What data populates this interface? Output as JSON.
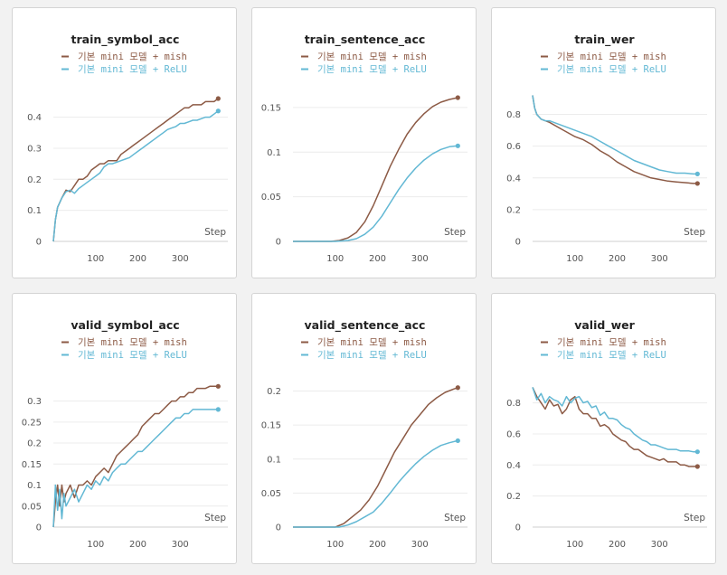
{
  "legend": {
    "series_a": "기본 mini 모델 + mish",
    "series_b": "기본 mini 모델 + ReLU"
  },
  "colors": {
    "mish": "#8c5a45",
    "relu": "#62b8d4",
    "grid": "#ececec"
  },
  "x_axis_label": "Step",
  "chart_data": [
    {
      "type": "line",
      "title": "train_symbol_acc",
      "xlabel": "Step",
      "xlim": [
        0,
        400
      ],
      "ylim": [
        0,
        0.46
      ],
      "xticks": [
        "100",
        "200",
        "300"
      ],
      "xtick_values": [
        100,
        200,
        300
      ],
      "yticks": [
        "0",
        "0.1",
        "0.2",
        "0.3",
        "0.4"
      ],
      "ytick_values": [
        0,
        0.1,
        0.2,
        0.3,
        0.4
      ],
      "series": [
        {
          "name": "기본 mini 모델 + mish",
          "x": [
            0,
            5,
            10,
            20,
            30,
            40,
            50,
            60,
            70,
            80,
            90,
            100,
            110,
            120,
            130,
            140,
            150,
            160,
            170,
            180,
            190,
            200,
            210,
            220,
            230,
            240,
            250,
            260,
            270,
            280,
            290,
            300,
            310,
            320,
            330,
            340,
            350,
            360,
            370,
            380,
            390
          ],
          "y": [
            0,
            0.07,
            0.11,
            0.14,
            0.165,
            0.16,
            0.18,
            0.2,
            0.2,
            0.21,
            0.23,
            0.24,
            0.25,
            0.25,
            0.26,
            0.26,
            0.26,
            0.28,
            0.29,
            0.3,
            0.31,
            0.32,
            0.33,
            0.34,
            0.35,
            0.36,
            0.37,
            0.38,
            0.39,
            0.4,
            0.41,
            0.42,
            0.43,
            0.43,
            0.44,
            0.44,
            0.44,
            0.45,
            0.45,
            0.45,
            0.46
          ]
        },
        {
          "name": "기본 mini 모델 + ReLU",
          "x": [
            0,
            5,
            10,
            20,
            30,
            40,
            50,
            60,
            70,
            80,
            90,
            100,
            110,
            120,
            130,
            140,
            150,
            160,
            170,
            180,
            190,
            200,
            210,
            220,
            230,
            240,
            250,
            260,
            270,
            280,
            290,
            300,
            310,
            320,
            330,
            340,
            350,
            360,
            370,
            380,
            390
          ],
          "y": [
            0,
            0.07,
            0.11,
            0.14,
            0.16,
            0.165,
            0.155,
            0.17,
            0.18,
            0.19,
            0.2,
            0.21,
            0.22,
            0.24,
            0.25,
            0.25,
            0.255,
            0.26,
            0.265,
            0.27,
            0.28,
            0.29,
            0.3,
            0.31,
            0.32,
            0.33,
            0.34,
            0.35,
            0.36,
            0.365,
            0.37,
            0.38,
            0.38,
            0.385,
            0.39,
            0.39,
            0.395,
            0.4,
            0.4,
            0.41,
            0.42
          ]
        }
      ]
    },
    {
      "type": "line",
      "title": "train_sentence_acc",
      "xlabel": "Step",
      "xlim": [
        0,
        400
      ],
      "ylim": [
        0,
        0.16
      ],
      "xticks": [
        "100",
        "200",
        "300"
      ],
      "xtick_values": [
        100,
        200,
        300
      ],
      "yticks": [
        "0",
        "0.05",
        "0.1",
        "0.15"
      ],
      "ytick_values": [
        0,
        0.05,
        0.1,
        0.15
      ],
      "series": [
        {
          "name": "기본 mini 모델 + mish",
          "x": [
            0,
            50,
            90,
            110,
            130,
            150,
            170,
            190,
            210,
            230,
            250,
            270,
            290,
            310,
            330,
            350,
            370,
            390
          ],
          "y": [
            0,
            0,
            0,
            0.001,
            0.004,
            0.01,
            0.022,
            0.04,
            0.062,
            0.084,
            0.103,
            0.12,
            0.133,
            0.143,
            0.151,
            0.156,
            0.159,
            0.161
          ]
        },
        {
          "name": "기본 mini 모델 + ReLU",
          "x": [
            0,
            50,
            100,
            130,
            150,
            170,
            190,
            210,
            230,
            250,
            270,
            290,
            310,
            330,
            350,
            370,
            390
          ],
          "y": [
            0,
            0,
            0,
            0.001,
            0.003,
            0.008,
            0.016,
            0.028,
            0.043,
            0.058,
            0.071,
            0.082,
            0.091,
            0.098,
            0.103,
            0.106,
            0.107
          ]
        }
      ]
    },
    {
      "type": "line",
      "title": "train_wer",
      "xlabel": "Step",
      "xlim": [
        0,
        400
      ],
      "ylim": [
        0,
        0.9
      ],
      "xticks": [
        "100",
        "200",
        "300"
      ],
      "xtick_values": [
        100,
        200,
        300
      ],
      "yticks": [
        "0",
        "0.2",
        "0.4",
        "0.6",
        "0.8"
      ],
      "ytick_values": [
        0,
        0.2,
        0.4,
        0.6,
        0.8
      ],
      "series": [
        {
          "name": "기본 mini 모델 + mish",
          "x": [
            0,
            5,
            10,
            20,
            30,
            40,
            60,
            80,
            100,
            120,
            140,
            160,
            180,
            200,
            220,
            240,
            260,
            280,
            300,
            320,
            340,
            360,
            380,
            390
          ],
          "y": [
            0.92,
            0.84,
            0.8,
            0.77,
            0.76,
            0.75,
            0.72,
            0.69,
            0.66,
            0.64,
            0.61,
            0.57,
            0.54,
            0.5,
            0.47,
            0.44,
            0.42,
            0.4,
            0.39,
            0.38,
            0.375,
            0.37,
            0.365,
            0.365
          ]
        },
        {
          "name": "기본 mini 모델 + ReLU",
          "x": [
            0,
            5,
            10,
            20,
            30,
            40,
            60,
            80,
            100,
            120,
            140,
            160,
            180,
            200,
            220,
            240,
            260,
            280,
            300,
            320,
            340,
            360,
            380,
            390
          ],
          "y": [
            0.92,
            0.84,
            0.8,
            0.77,
            0.76,
            0.76,
            0.74,
            0.72,
            0.7,
            0.68,
            0.66,
            0.63,
            0.6,
            0.57,
            0.54,
            0.51,
            0.49,
            0.47,
            0.45,
            0.44,
            0.43,
            0.43,
            0.425,
            0.425
          ]
        }
      ]
    },
    {
      "type": "line",
      "title": "valid_symbol_acc",
      "xlabel": "Step",
      "xlim": [
        0,
        400
      ],
      "ylim": [
        0,
        0.34
      ],
      "xticks": [
        "100",
        "200",
        "300"
      ],
      "xtick_values": [
        100,
        200,
        300
      ],
      "yticks": [
        "0",
        "0.05",
        "0.1",
        "0.15",
        "0.2",
        "0.25",
        "0.3"
      ],
      "ytick_values": [
        0,
        0.05,
        0.1,
        0.15,
        0.2,
        0.25,
        0.3
      ],
      "series": [
        {
          "name": "기본 mini 모델 + mish",
          "x": [
            0,
            5,
            10,
            15,
            20,
            25,
            30,
            40,
            50,
            60,
            70,
            80,
            90,
            100,
            110,
            120,
            130,
            140,
            150,
            160,
            170,
            180,
            190,
            200,
            210,
            220,
            230,
            240,
            250,
            260,
            270,
            280,
            290,
            300,
            310,
            320,
            330,
            340,
            350,
            360,
            370,
            380,
            390
          ],
          "y": [
            0,
            0.06,
            0.1,
            0.05,
            0.1,
            0.06,
            0.08,
            0.1,
            0.07,
            0.1,
            0.1,
            0.11,
            0.1,
            0.12,
            0.13,
            0.14,
            0.13,
            0.15,
            0.17,
            0.18,
            0.19,
            0.2,
            0.21,
            0.22,
            0.24,
            0.25,
            0.26,
            0.27,
            0.27,
            0.28,
            0.29,
            0.3,
            0.3,
            0.31,
            0.31,
            0.32,
            0.32,
            0.33,
            0.33,
            0.33,
            0.335,
            0.335,
            0.335
          ]
        },
        {
          "name": "기본 mini 모델 + ReLU",
          "x": [
            0,
            5,
            10,
            15,
            20,
            25,
            30,
            40,
            50,
            60,
            70,
            80,
            90,
            100,
            110,
            120,
            130,
            140,
            150,
            160,
            170,
            180,
            190,
            200,
            210,
            220,
            230,
            240,
            250,
            260,
            270,
            280,
            290,
            300,
            310,
            320,
            330,
            340,
            350,
            360,
            370,
            380,
            390
          ],
          "y": [
            0,
            0.1,
            0.04,
            0.09,
            0.02,
            0.08,
            0.05,
            0.07,
            0.09,
            0.06,
            0.08,
            0.1,
            0.09,
            0.11,
            0.1,
            0.12,
            0.11,
            0.13,
            0.14,
            0.15,
            0.15,
            0.16,
            0.17,
            0.18,
            0.18,
            0.19,
            0.2,
            0.21,
            0.22,
            0.23,
            0.24,
            0.25,
            0.26,
            0.26,
            0.27,
            0.27,
            0.28,
            0.28,
            0.28,
            0.28,
            0.28,
            0.28,
            0.28
          ]
        }
      ]
    },
    {
      "type": "line",
      "title": "valid_sentence_acc",
      "xlabel": "Step",
      "xlim": [
        0,
        400
      ],
      "ylim": [
        0,
        0.21
      ],
      "xticks": [
        "100",
        "200",
        "300"
      ],
      "xtick_values": [
        100,
        200,
        300
      ],
      "yticks": [
        "0",
        "0.05",
        "0.1",
        "0.15",
        "0.2"
      ],
      "ytick_values": [
        0,
        0.05,
        0.1,
        0.15,
        0.2
      ],
      "series": [
        {
          "name": "기본 mini 모델 + mish",
          "x": [
            0,
            50,
            100,
            120,
            140,
            160,
            180,
            200,
            220,
            240,
            260,
            280,
            300,
            320,
            340,
            360,
            380,
            390
          ],
          "y": [
            0,
            0,
            0,
            0.005,
            0.015,
            0.025,
            0.04,
            0.06,
            0.085,
            0.11,
            0.13,
            0.15,
            0.165,
            0.18,
            0.19,
            0.198,
            0.203,
            0.205
          ]
        },
        {
          "name": "기본 mini 모델 + ReLU",
          "x": [
            0,
            50,
            110,
            130,
            150,
            170,
            190,
            210,
            230,
            250,
            270,
            290,
            310,
            330,
            350,
            370,
            390
          ],
          "y": [
            0,
            0,
            0,
            0.003,
            0.008,
            0.015,
            0.022,
            0.035,
            0.05,
            0.066,
            0.08,
            0.093,
            0.104,
            0.113,
            0.12,
            0.124,
            0.127
          ]
        }
      ]
    },
    {
      "type": "line",
      "title": "valid_wer",
      "xlabel": "Step",
      "xlim": [
        0,
        400
      ],
      "ylim": [
        0,
        0.92
      ],
      "xticks": [
        "100",
        "200",
        "300"
      ],
      "xtick_values": [
        100,
        200,
        300
      ],
      "yticks": [
        "0",
        "0.2",
        "0.4",
        "0.6",
        "0.8"
      ],
      "ytick_values": [
        0,
        0.2,
        0.4,
        0.6,
        0.8
      ],
      "series": [
        {
          "name": "기본 mini 모델 + mish",
          "x": [
            0,
            10,
            20,
            30,
            40,
            50,
            60,
            70,
            80,
            90,
            100,
            110,
            120,
            130,
            140,
            150,
            160,
            170,
            180,
            190,
            200,
            210,
            220,
            230,
            240,
            250,
            260,
            270,
            280,
            290,
            300,
            310,
            320,
            330,
            340,
            350,
            360,
            370,
            380,
            390
          ],
          "y": [
            0.9,
            0.84,
            0.8,
            0.76,
            0.82,
            0.78,
            0.79,
            0.73,
            0.76,
            0.82,
            0.84,
            0.76,
            0.73,
            0.73,
            0.7,
            0.7,
            0.65,
            0.66,
            0.64,
            0.6,
            0.58,
            0.56,
            0.55,
            0.52,
            0.5,
            0.5,
            0.48,
            0.46,
            0.45,
            0.44,
            0.43,
            0.44,
            0.42,
            0.42,
            0.42,
            0.4,
            0.4,
            0.39,
            0.39,
            0.39
          ]
        },
        {
          "name": "기본 mini 모델 + ReLU",
          "x": [
            0,
            10,
            20,
            30,
            40,
            50,
            60,
            70,
            80,
            90,
            100,
            110,
            120,
            130,
            140,
            150,
            160,
            170,
            180,
            190,
            200,
            210,
            220,
            230,
            240,
            250,
            260,
            270,
            280,
            290,
            300,
            310,
            320,
            330,
            340,
            350,
            360,
            370,
            380,
            390
          ],
          "y": [
            0.9,
            0.82,
            0.86,
            0.8,
            0.84,
            0.82,
            0.81,
            0.78,
            0.84,
            0.8,
            0.83,
            0.84,
            0.8,
            0.81,
            0.77,
            0.78,
            0.72,
            0.74,
            0.7,
            0.7,
            0.69,
            0.66,
            0.64,
            0.63,
            0.6,
            0.58,
            0.56,
            0.55,
            0.53,
            0.53,
            0.52,
            0.51,
            0.5,
            0.5,
            0.5,
            0.49,
            0.49,
            0.49,
            0.485,
            0.485
          ]
        }
      ]
    }
  ]
}
